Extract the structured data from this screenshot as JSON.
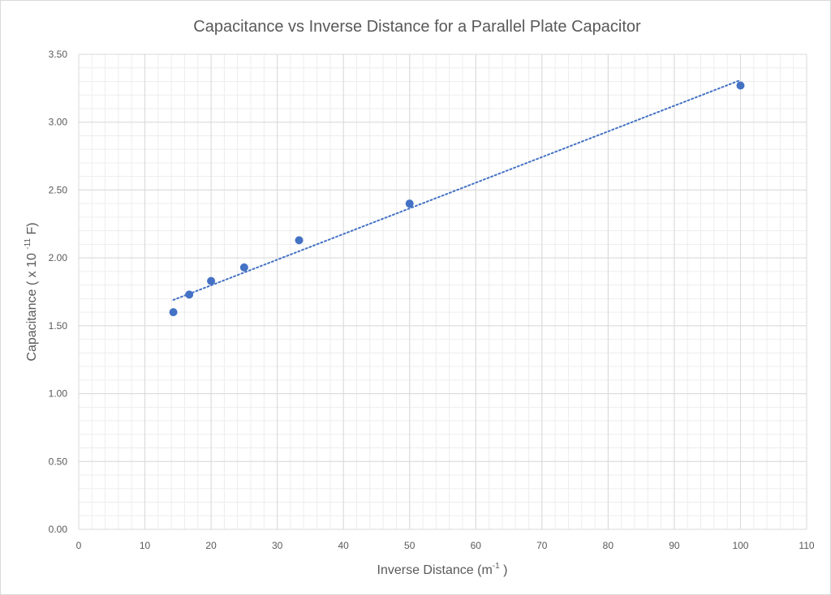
{
  "chart_data": {
    "type": "scatter",
    "title": "Capacitance vs Inverse Distance for a Parallel Plate Capacitor",
    "xlabel": {
      "main": "Inverse Distance (m",
      "sup": "-1",
      "end": " )"
    },
    "ylabel": {
      "main": "Capacitance ( x 10 ",
      "sup": "-11",
      "end": " F)"
    },
    "xlim": [
      0,
      110
    ],
    "ylim": [
      0,
      3.5
    ],
    "x_major_ticks": [
      0,
      10,
      20,
      30,
      40,
      50,
      60,
      70,
      80,
      90,
      100,
      110
    ],
    "y_major_ticks": [
      "0.00",
      "0.50",
      "1.00",
      "1.50",
      "2.00",
      "2.50",
      "3.00",
      "3.50"
    ],
    "x_minor_step": 2,
    "y_minor_step": 0.1,
    "grid": "major and minor",
    "legend": "none",
    "series": [
      {
        "x": [
          14.3,
          16.7,
          20,
          25,
          33.3,
          50,
          100
        ],
        "y": [
          1.6,
          1.73,
          1.83,
          1.93,
          2.13,
          2.4,
          3.27
        ],
        "color": "#4472c4"
      }
    ],
    "trendline": {
      "type": "linear",
      "style": "dotted",
      "color": "#4472c4",
      "x": [
        14.3,
        100
      ],
      "y": [
        1.69,
        3.31
      ]
    }
  }
}
